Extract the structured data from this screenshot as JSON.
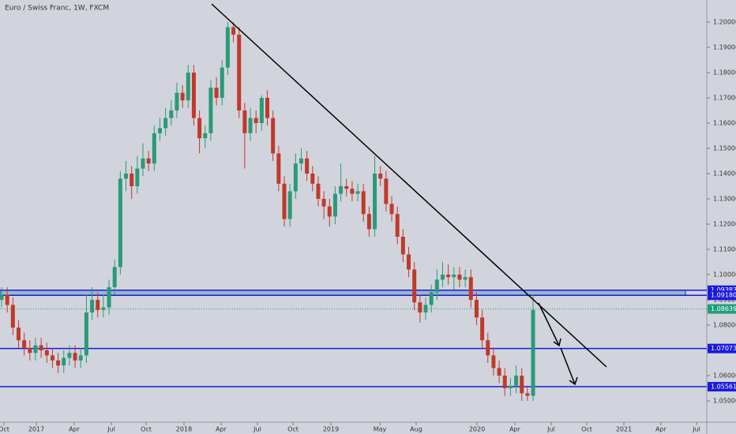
{
  "chart_data": {
    "type": "candlestick",
    "title": "Euro / Swiss Franc, 1W, FXCM",
    "up_color": "#2a9a78",
    "down_color": "#c0392b",
    "level_color": "#1a1adf",
    "last_color": "#1e9e7a",
    "categories": [
      null,
      null,
      null,
      null,
      null,
      null,
      null,
      null,
      null,
      null,
      null,
      null,
      null,
      null,
      null,
      null,
      null,
      null,
      null,
      null,
      null,
      null,
      null,
      null,
      null,
      null,
      null,
      null,
      null,
      null,
      null,
      null,
      null,
      null,
      null,
      null,
      null,
      null,
      null,
      null,
      null,
      null,
      null,
      null,
      null,
      null,
      null,
      null,
      null,
      null,
      null,
      null,
      null,
      null,
      null,
      null,
      null,
      null,
      null,
      null,
      null,
      null,
      null,
      null,
      null,
      null,
      null,
      null,
      null,
      null,
      null,
      null,
      null,
      null,
      null,
      null,
      null,
      null,
      null,
      null,
      null,
      null,
      null,
      null,
      null,
      null,
      null,
      null,
      null,
      null,
      null,
      null,
      null,
      null,
      null
    ],
    "open": [
      1.09,
      1.092,
      1.088,
      1.079,
      1.074,
      1.071,
      1.069,
      1.072,
      1.07,
      1.068,
      1.066,
      1.064,
      1.067,
      1.069,
      1.066,
      1.068,
      1.085,
      1.09,
      1.086,
      1.087,
      1.095,
      1.103,
      1.138,
      1.14,
      1.135,
      1.142,
      1.146,
      1.144,
      1.156,
      1.158,
      1.162,
      1.165,
      1.172,
      1.169,
      1.18,
      1.162,
      1.154,
      1.156,
      1.174,
      1.17,
      1.182,
      1.198,
      1.195,
      1.165,
      1.156,
      1.162,
      1.16,
      1.17,
      1.162,
      1.148,
      1.136,
      1.122,
      1.133,
      1.144,
      1.146,
      1.14,
      1.136,
      1.13,
      1.127,
      1.123,
      1.132,
      1.135,
      1.134,
      1.132,
      1.133,
      1.124,
      1.118,
      1.14,
      1.138,
      1.128,
      1.124,
      1.115,
      1.108,
      1.102,
      1.089,
      1.085,
      1.088,
      1.093,
      1.098,
      1.1,
      1.099,
      1.1,
      1.098,
      1.099,
      1.09,
      1.083,
      1.074,
      1.068,
      1.063,
      1.06,
      1.055,
      1.056,
      1.06,
      1.053,
      1.052
    ],
    "high": [
      1.095,
      1.095,
      1.091,
      1.082,
      1.077,
      1.074,
      1.075,
      1.075,
      1.073,
      1.071,
      1.069,
      1.07,
      1.072,
      1.072,
      1.071,
      1.092,
      1.095,
      1.093,
      1.092,
      1.098,
      1.106,
      1.141,
      1.145,
      1.143,
      1.147,
      1.152,
      1.149,
      1.159,
      1.162,
      1.166,
      1.169,
      1.176,
      1.175,
      1.183,
      1.183,
      1.165,
      1.159,
      1.177,
      1.178,
      1.185,
      1.2,
      1.2,
      1.198,
      1.168,
      1.166,
      1.165,
      1.171,
      1.173,
      1.165,
      1.151,
      1.139,
      1.136,
      1.148,
      1.15,
      1.149,
      1.143,
      1.139,
      1.133,
      1.13,
      1.135,
      1.144,
      1.138,
      1.137,
      1.136,
      1.136,
      1.127,
      1.147,
      1.143,
      1.141,
      1.131,
      1.127,
      1.118,
      1.111,
      1.105,
      1.092,
      1.091,
      1.096,
      1.102,
      1.105,
      1.104,
      1.103,
      1.103,
      1.102,
      1.102,
      1.093,
      1.086,
      1.077,
      1.071,
      1.066,
      1.063,
      1.059,
      1.064,
      1.063,
      1.056,
      1.092
    ],
    "low": [
      1.087,
      1.085,
      1.076,
      1.071,
      1.068,
      1.066,
      1.066,
      1.067,
      1.065,
      1.063,
      1.061,
      1.061,
      1.064,
      1.063,
      1.063,
      1.065,
      1.082,
      1.083,
      1.083,
      1.084,
      1.092,
      1.1,
      1.133,
      1.13,
      1.132,
      1.139,
      1.141,
      1.141,
      1.153,
      1.155,
      1.159,
      1.162,
      1.166,
      1.166,
      1.159,
      1.148,
      1.15,
      1.153,
      1.167,
      1.167,
      1.179,
      1.192,
      1.162,
      1.142,
      1.153,
      1.156,
      1.157,
      1.159,
      1.145,
      1.133,
      1.119,
      1.119,
      1.13,
      1.141,
      1.137,
      1.133,
      1.127,
      1.122,
      1.119,
      1.12,
      1.129,
      1.131,
      1.129,
      1.129,
      1.121,
      1.115,
      1.115,
      1.135,
      1.125,
      1.121,
      1.112,
      1.105,
      1.099,
      1.086,
      1.081,
      1.082,
      1.085,
      1.09,
      1.095,
      1.096,
      1.094,
      1.095,
      1.095,
      1.087,
      1.08,
      1.071,
      1.065,
      1.06,
      1.057,
      1.052,
      1.052,
      1.053,
      1.05,
      1.05,
      1.05
    ],
    "close": [
      1.092,
      1.088,
      1.079,
      1.074,
      1.071,
      1.069,
      1.072,
      1.07,
      1.068,
      1.066,
      1.064,
      1.067,
      1.069,
      1.066,
      1.068,
      1.085,
      1.09,
      1.086,
      1.087,
      1.095,
      1.103,
      1.138,
      1.14,
      1.135,
      1.142,
      1.146,
      1.144,
      1.156,
      1.158,
      1.162,
      1.165,
      1.172,
      1.169,
      1.18,
      1.162,
      1.154,
      1.156,
      1.174,
      1.17,
      1.182,
      1.198,
      1.195,
      1.165,
      1.156,
      1.162,
      1.16,
      1.17,
      1.162,
      1.148,
      1.136,
      1.122,
      1.133,
      1.144,
      1.146,
      1.14,
      1.136,
      1.13,
      1.127,
      1.123,
      1.132,
      1.135,
      1.134,
      1.132,
      1.133,
      1.124,
      1.118,
      1.14,
      1.138,
      1.128,
      1.124,
      1.115,
      1.108,
      1.102,
      1.089,
      1.085,
      1.088,
      1.093,
      1.098,
      1.1,
      1.099,
      1.1,
      1.098,
      1.099,
      1.09,
      1.083,
      1.074,
      1.068,
      1.063,
      1.06,
      1.055,
      1.056,
      1.06,
      1.053,
      1.052,
      1.086
    ],
    "ylim": [
      1.04156,
      1.20875
    ],
    "yticks": [
      {
        "value": 1.05,
        "label": "1.05000"
      },
      {
        "value": 1.06,
        "label": "1.06000"
      },
      {
        "value": 1.07,
        "label": "1.07000"
      },
      {
        "value": 1.08,
        "label": "1.08000"
      },
      {
        "value": 1.09,
        "label": "1.09000"
      },
      {
        "value": 1.1,
        "label": "1.10000"
      },
      {
        "value": 1.11,
        "label": "1.11000"
      },
      {
        "value": 1.12,
        "label": "1.12000"
      },
      {
        "value": 1.13,
        "label": "1.13000"
      },
      {
        "value": 1.14,
        "label": "1.14000"
      },
      {
        "value": 1.15,
        "label": "1.15000"
      },
      {
        "value": 1.16,
        "label": "1.16000"
      },
      {
        "value": 1.17,
        "label": "1.17000"
      },
      {
        "value": 1.18,
        "label": "1.18000"
      },
      {
        "value": 1.19,
        "label": "1.19000"
      },
      {
        "value": 1.2,
        "label": "1.20000"
      }
    ],
    "xlim": [
      -0.28,
      124.72
    ],
    "xticks": [
      {
        "value": 0.42,
        "label": "Oct"
      },
      {
        "value": 6.15,
        "label": "2017"
      },
      {
        "value": 12.85,
        "label": "Apr"
      },
      {
        "value": 19.41,
        "label": "Jul"
      },
      {
        "value": 25.56,
        "label": "Oct"
      },
      {
        "value": 32.26,
        "label": "2018"
      },
      {
        "value": 38.83,
        "label": "Apr"
      },
      {
        "value": 45.25,
        "label": "Jul"
      },
      {
        "value": 51.54,
        "label": "Oct"
      },
      {
        "value": 58.24,
        "label": "2019"
      },
      {
        "value": 66.9,
        "label": "May"
      },
      {
        "value": 73.32,
        "label": "Aug"
      },
      {
        "value": 84.08,
        "label": "2020"
      },
      {
        "value": 90.78,
        "label": "Apr"
      },
      {
        "value": 97.2,
        "label": "Jul"
      },
      {
        "value": 103.49,
        "label": "Oct"
      },
      {
        "value": 110.06,
        "label": "2021"
      },
      {
        "value": 116.6,
        "label": "Apr"
      },
      {
        "value": 122.9,
        "label": "Jul"
      }
    ],
    "zone": [
      {
        "value": 1.09383,
        "label": "1.09383"
      },
      {
        "value": 1.0918,
        "label": "1.09180"
      }
    ],
    "levels": [
      {
        "value": 1.07073,
        "label": "1.07073"
      },
      {
        "value": 1.05561,
        "label": "1.05561"
      }
    ],
    "last_price": {
      "value": 1.08639,
      "label": "1.08639"
    }
  }
}
